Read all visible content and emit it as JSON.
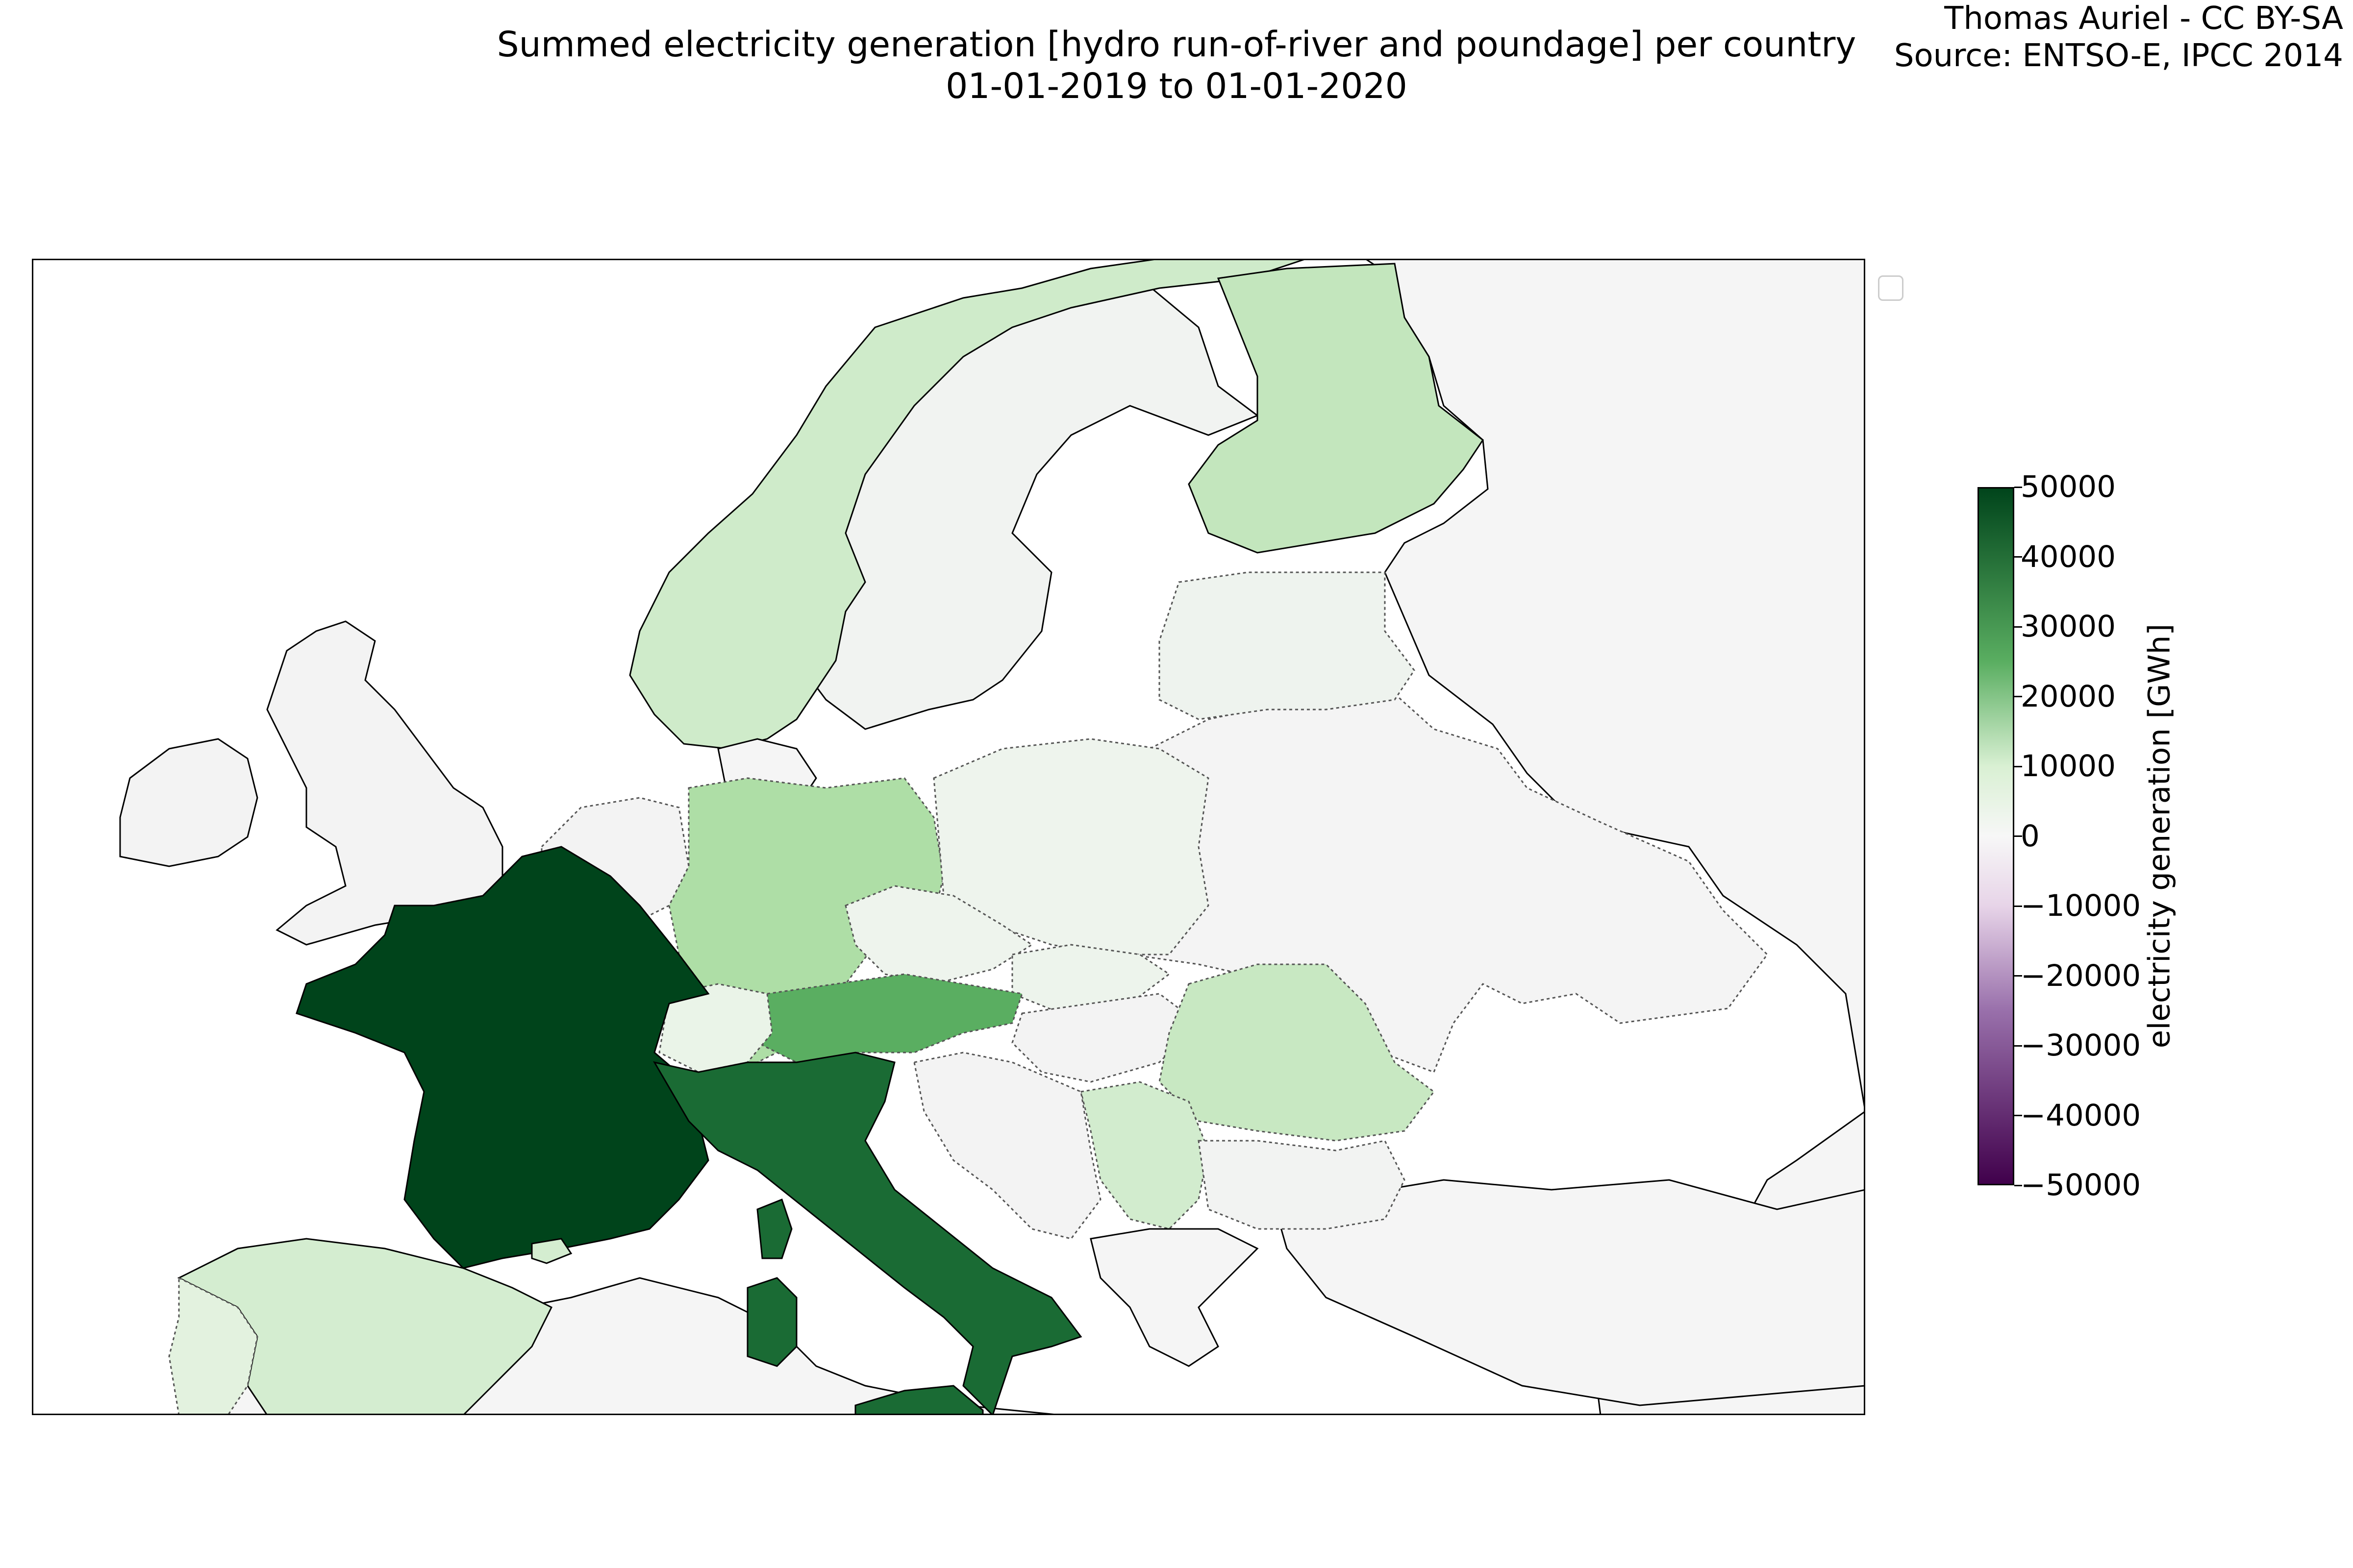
{
  "title": {
    "line1": "Summed electricity generation [hydro run-of-river and poundage] per country",
    "line2": "01-01-2019 to 01-01-2020"
  },
  "credit": {
    "line1": "Thomas Auriel - CC BY-SA",
    "line2": "Source: ENTSO-E, IPCC 2014"
  },
  "map_data": {
    "type": "choropleth",
    "region": "Europe",
    "colormap": "PRGn",
    "value_range": [
      -50000,
      50000
    ],
    "regions": [
      {
        "name": "France",
        "value": 45000,
        "color": "#00441b"
      },
      {
        "name": "Italy",
        "value": 37000,
        "color": "#1a6b34"
      },
      {
        "name": "Austria",
        "value": 26000,
        "color": "#5aae61"
      },
      {
        "name": "Germany",
        "value": 15000,
        "color": "#aedea6"
      },
      {
        "name": "Finland",
        "value": 13000,
        "color": "#c3e6bd"
      },
      {
        "name": "Romania",
        "value": 12000,
        "color": "#c8e8c2"
      },
      {
        "name": "Norway",
        "value": 10000,
        "color": "#cfebca"
      },
      {
        "name": "Spain",
        "value": 9000,
        "color": "#d4edd0"
      },
      {
        "name": "Serbia",
        "value": 9500,
        "color": "#d2ecce"
      },
      {
        "name": "Portugal",
        "value": 5000,
        "color": "#e3f2df"
      },
      {
        "name": "Switzerland",
        "value": 2500,
        "color": "#eaf4e8"
      },
      {
        "name": "Poland",
        "value": 1500,
        "color": "#eef4ed"
      },
      {
        "name": "Czech Republic",
        "value": 1500,
        "color": "#eef4ed"
      },
      {
        "name": "Slovakia",
        "value": 2000,
        "color": "#edf4ec"
      },
      {
        "name": "Lithuania",
        "value": 1000,
        "color": "#eef3ee"
      },
      {
        "name": "Latvia",
        "value": 1500,
        "color": "#eef3ee"
      },
      {
        "name": "Sweden",
        "value": 500,
        "color": "#f1f3f1"
      },
      {
        "name": "United Kingdom",
        "value": 200,
        "color": "#f3f3f3"
      },
      {
        "name": "Ireland",
        "value": 200,
        "color": "#f3f3f3"
      },
      {
        "name": "Belgium",
        "value": 200,
        "color": "#f3f3f3"
      },
      {
        "name": "Netherlands",
        "value": 0,
        "color": "#f5f5f5"
      },
      {
        "name": "Denmark",
        "value": 0,
        "color": "#f5f5f5"
      },
      {
        "name": "Greece",
        "value": 0,
        "color": "#f5f5f5"
      },
      {
        "name": "Bulgaria",
        "value": 500,
        "color": "#f2f3f2"
      },
      {
        "name": "Hungary",
        "value": 200,
        "color": "#f3f3f3"
      }
    ]
  },
  "colorbar": {
    "label": "electricity generation [GWh]",
    "ticks": [
      "50000",
      "40000",
      "30000",
      "20000",
      "10000",
      "0",
      "−10000",
      "−20000",
      "−30000",
      "−40000",
      "−50000"
    ],
    "tick_values": [
      50000,
      40000,
      30000,
      20000,
      10000,
      0,
      -10000,
      -20000,
      -30000,
      -40000,
      -50000
    ],
    "colors": {
      "top": "#00441b",
      "upper": "#5aae61",
      "light_green": "#d9f0d3",
      "mid": "#f7f7f7",
      "light_purple": "#e7d4e8",
      "lower": "#9970ab",
      "bottom": "#40004b"
    }
  },
  "colors": {
    "background": "#ffffff",
    "sea": "#ffffff",
    "no_data_land": "#f5f5f5",
    "coastline": "#000000",
    "border": "#555555"
  }
}
